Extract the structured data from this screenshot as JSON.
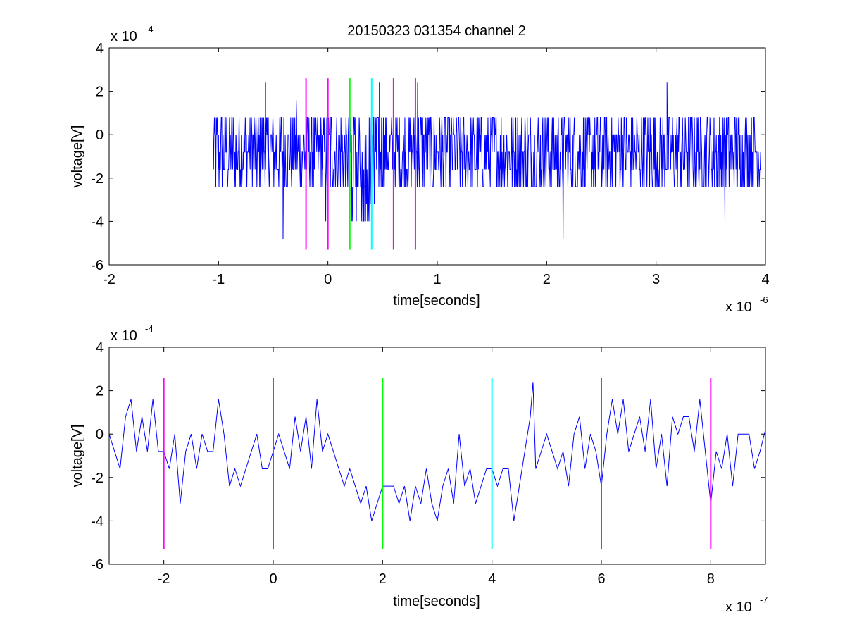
{
  "figure_title": "20150323 031354 channel 2",
  "colors": {
    "signal": "#0000ff",
    "marker_magenta": "#ff00ff",
    "marker_green": "#00ff00",
    "marker_cyan": "#00ffff",
    "axes": "#000000"
  },
  "chart_data": [
    {
      "type": "line",
      "title": "20150323 031354 channel 2",
      "xlabel": "time[seconds]",
      "ylabel": "voltage[V]",
      "x_exponent_label": "x 10",
      "x_exponent": "-6",
      "y_exponent_label": "x 10",
      "y_exponent": "-4",
      "xlim": [
        -2,
        4
      ],
      "ylim": [
        -6,
        4
      ],
      "x_scale": "1e-6",
      "y_scale": "1e-4",
      "xticks": [
        "-2",
        "-1",
        "0",
        "1",
        "2",
        "3",
        "4"
      ],
      "yticks": [
        "-6",
        "-4",
        "-2",
        "0",
        "2",
        "4"
      ],
      "grid": false,
      "series": [
        {
          "x_range": [
            -1.05,
            3.96
          ],
          "y_levels": [
            -4.8,
            -4.0,
            -3.2,
            -2.4,
            -1.6,
            -0.8,
            0,
            0.8,
            1.6,
            2.4
          ],
          "segments": [
            {
              "x0": -1.05,
              "x1": -0.25,
              "lo": -2.4,
              "hi": 0.8
            },
            {
              "x0": -0.25,
              "x1": 0.2,
              "lo": -2.4,
              "hi": 0.8
            },
            {
              "x0": 0.2,
              "x1": 0.45,
              "lo": -4.0,
              "hi": 0.8
            },
            {
              "x0": 0.45,
              "x1": 0.8,
              "lo": -2.4,
              "hi": 0.8
            },
            {
              "x0": 0.8,
              "x1": 3.96,
              "lo": -2.4,
              "hi": 0.8
            }
          ],
          "spikes": [
            {
              "x": -0.57,
              "y": 2.4
            },
            {
              "x": -0.41,
              "y": -4.8
            },
            {
              "x": -0.29,
              "y": 1.6
            },
            {
              "x": -0.02,
              "y": -4.0
            },
            {
              "x": 0.2,
              "y": -4.0
            },
            {
              "x": 0.26,
              "y": -4.0
            },
            {
              "x": 0.33,
              "y": -4.0
            },
            {
              "x": 0.47,
              "y": 2.4
            },
            {
              "x": 0.82,
              "y": 2.4
            },
            {
              "x": 2.15,
              "y": -4.8
            },
            {
              "x": 3.1,
              "y": 2.4
            },
            {
              "x": 3.63,
              "y": -4.0
            }
          ]
        }
      ],
      "markers": [
        {
          "x": -0.2,
          "color": "magenta"
        },
        {
          "x": 0.0,
          "color": "magenta"
        },
        {
          "x": 0.2,
          "color": "green"
        },
        {
          "x": 0.4,
          "color": "cyan"
        },
        {
          "x": 0.6,
          "color": "magenta"
        },
        {
          "x": 0.8,
          "color": "magenta"
        }
      ],
      "marker_range": [
        -5.3,
        2.6
      ]
    },
    {
      "type": "line",
      "title": "",
      "xlabel": "time[seconds]",
      "ylabel": "voltage[V]",
      "x_exponent_label": "x 10",
      "x_exponent": "-7",
      "y_exponent_label": "x 10",
      "y_exponent": "-4",
      "xlim": [
        -3,
        9
      ],
      "ylim": [
        -6,
        4
      ],
      "x_scale": "1e-7",
      "y_scale": "1e-4",
      "xticks": [
        "-2",
        "0",
        "2",
        "4",
        "6",
        "8"
      ],
      "yticks": [
        "-6",
        "-4",
        "-2",
        "0",
        "2",
        "4"
      ],
      "grid": false,
      "series": [
        {
          "x_step": 0.04,
          "points": [
            [
              -3.0,
              0
            ],
            [
              -2.9,
              -0.8
            ],
            [
              -2.8,
              -1.6
            ],
            [
              -2.7,
              0.8
            ],
            [
              -2.6,
              1.6
            ],
            [
              -2.5,
              -0.8
            ],
            [
              -2.4,
              0.8
            ],
            [
              -2.3,
              -0.8
            ],
            [
              -2.2,
              1.6
            ],
            [
              -2.1,
              -0.8
            ],
            [
              -2.0,
              -0.8
            ],
            [
              -1.9,
              -1.6
            ],
            [
              -1.8,
              0
            ],
            [
              -1.7,
              -3.2
            ],
            [
              -1.6,
              -0.8
            ],
            [
              -1.5,
              0
            ],
            [
              -1.4,
              -1.6
            ],
            [
              -1.3,
              0
            ],
            [
              -1.2,
              -0.8
            ],
            [
              -1.1,
              -0.8
            ],
            [
              -1.0,
              1.6
            ],
            [
              -0.9,
              0
            ],
            [
              -0.8,
              -2.4
            ],
            [
              -0.7,
              -1.6
            ],
            [
              -0.6,
              -2.4
            ],
            [
              -0.5,
              -1.6
            ],
            [
              -0.4,
              -0.8
            ],
            [
              -0.3,
              0
            ],
            [
              -0.2,
              -1.6
            ],
            [
              -0.1,
              -1.6
            ],
            [
              0.0,
              -0.8
            ],
            [
              0.1,
              0
            ],
            [
              0.2,
              -0.8
            ],
            [
              0.3,
              -1.6
            ],
            [
              0.4,
              0.8
            ],
            [
              0.5,
              -0.8
            ],
            [
              0.6,
              0.8
            ],
            [
              0.7,
              -1.6
            ],
            [
              0.8,
              1.6
            ],
            [
              0.9,
              -0.8
            ],
            [
              1.0,
              0
            ],
            [
              1.1,
              -0.8
            ],
            [
              1.2,
              -1.6
            ],
            [
              1.3,
              -2.4
            ],
            [
              1.4,
              -1.6
            ],
            [
              1.5,
              -2.4
            ],
            [
              1.6,
              -3.2
            ],
            [
              1.7,
              -2.4
            ],
            [
              1.8,
              -4.0
            ],
            [
              1.9,
              -3.2
            ],
            [
              2.0,
              -2.4
            ],
            [
              2.1,
              -2.4
            ],
            [
              2.2,
              -2.4
            ],
            [
              2.3,
              -3.2
            ],
            [
              2.4,
              -2.4
            ],
            [
              2.5,
              -4.0
            ],
            [
              2.6,
              -2.4
            ],
            [
              2.7,
              -3.2
            ],
            [
              2.8,
              -1.6
            ],
            [
              2.9,
              -3.2
            ],
            [
              3.0,
              -4.0
            ],
            [
              3.1,
              -2.4
            ],
            [
              3.2,
              -1.6
            ],
            [
              3.3,
              -3.2
            ],
            [
              3.4,
              0
            ],
            [
              3.5,
              -2.4
            ],
            [
              3.6,
              -1.6
            ],
            [
              3.7,
              -3.2
            ],
            [
              3.8,
              -2.4
            ],
            [
              3.9,
              -1.6
            ],
            [
              4.0,
              -1.6
            ],
            [
              4.1,
              -2.4
            ],
            [
              4.2,
              -1.6
            ],
            [
              4.3,
              -1.6
            ],
            [
              4.4,
              -4.0
            ],
            [
              4.5,
              -2.4
            ],
            [
              4.6,
              -0.8
            ],
            [
              4.7,
              0.8
            ],
            [
              4.75,
              2.4
            ],
            [
              4.8,
              -1.6
            ],
            [
              4.9,
              -0.8
            ],
            [
              5.0,
              0
            ],
            [
              5.1,
              -0.8
            ],
            [
              5.2,
              -1.6
            ],
            [
              5.3,
              -0.8
            ],
            [
              5.4,
              -2.4
            ],
            [
              5.5,
              0
            ],
            [
              5.6,
              0.8
            ],
            [
              5.7,
              -1.6
            ],
            [
              5.8,
              0
            ],
            [
              5.9,
              -0.8
            ],
            [
              6.0,
              -2.4
            ],
            [
              6.1,
              0
            ],
            [
              6.2,
              1.6
            ],
            [
              6.3,
              0
            ],
            [
              6.4,
              1.6
            ],
            [
              6.5,
              -0.8
            ],
            [
              6.6,
              0
            ],
            [
              6.7,
              0.8
            ],
            [
              6.8,
              -0.8
            ],
            [
              6.9,
              1.6
            ],
            [
              7.0,
              -1.6
            ],
            [
              7.1,
              0
            ],
            [
              7.2,
              -2.4
            ],
            [
              7.3,
              0.8
            ],
            [
              7.4,
              0
            ],
            [
              7.5,
              0.8
            ],
            [
              7.6,
              0.8
            ],
            [
              7.7,
              -0.8
            ],
            [
              7.8,
              1.6
            ],
            [
              7.9,
              -0.8
            ],
            [
              8.0,
              -3.2
            ],
            [
              8.1,
              -0.8
            ],
            [
              8.2,
              -1.6
            ],
            [
              8.3,
              0
            ],
            [
              8.4,
              -2.4
            ],
            [
              8.5,
              0
            ],
            [
              8.6,
              0
            ],
            [
              8.7,
              0
            ],
            [
              8.8,
              -1.6
            ],
            [
              8.9,
              -0.8
            ],
            [
              9.0,
              0.2
            ]
          ]
        }
      ],
      "markers": [
        {
          "x": -2.0,
          "color": "magenta"
        },
        {
          "x": 0.0,
          "color": "magenta"
        },
        {
          "x": 2.0,
          "color": "green"
        },
        {
          "x": 4.0,
          "color": "cyan"
        },
        {
          "x": 6.0,
          "color": "magenta"
        },
        {
          "x": 8.0,
          "color": "magenta"
        }
      ],
      "marker_range": [
        -5.3,
        2.6
      ]
    }
  ]
}
